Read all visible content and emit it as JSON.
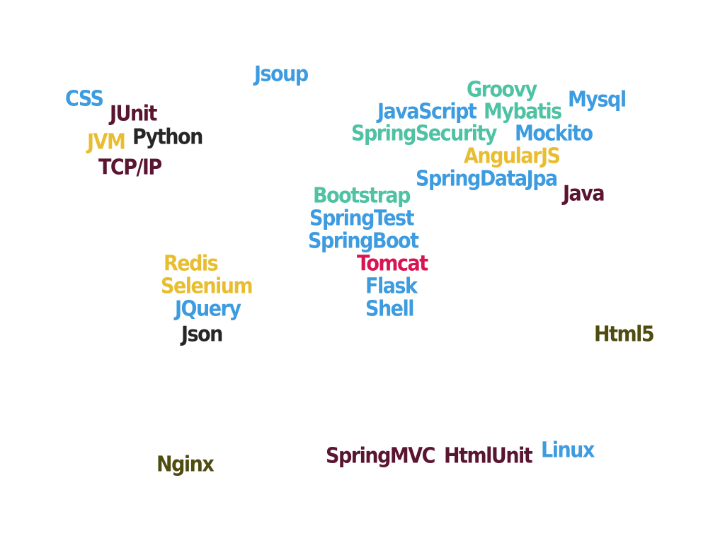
{
  "colors": {
    "blue": "#3d9be0",
    "teal": "#4ec2a3",
    "yellow": "#e8bd2f",
    "maroon": "#5a1530",
    "black": "#262626",
    "olive": "#4f4c10",
    "crimson": "#d81552"
  },
  "words": [
    {
      "text": "Jsoup",
      "color": "blue"
    },
    {
      "text": "CSS",
      "color": "blue"
    },
    {
      "text": "JUnit",
      "color": "maroon"
    },
    {
      "text": "JVM",
      "color": "yellow"
    },
    {
      "text": "Python",
      "color": "black"
    },
    {
      "text": "TCP/IP",
      "color": "maroon"
    },
    {
      "text": "Groovy",
      "color": "teal"
    },
    {
      "text": "Mysql",
      "color": "blue"
    },
    {
      "text": "JavaScript",
      "color": "blue"
    },
    {
      "text": "Mybatis",
      "color": "teal"
    },
    {
      "text": "SpringSecurity",
      "color": "teal"
    },
    {
      "text": "Mockito",
      "color": "blue"
    },
    {
      "text": "AngularJS",
      "color": "yellow"
    },
    {
      "text": "SpringDataJpa",
      "color": "blue"
    },
    {
      "text": "Java",
      "color": "maroon"
    },
    {
      "text": "Bootstrap",
      "color": "teal"
    },
    {
      "text": "SpringTest",
      "color": "blue"
    },
    {
      "text": "SpringBoot",
      "color": "blue"
    },
    {
      "text": "Tomcat",
      "color": "crimson"
    },
    {
      "text": "Flask",
      "color": "blue"
    },
    {
      "text": "Shell",
      "color": "blue"
    },
    {
      "text": "Redis",
      "color": "yellow"
    },
    {
      "text": "Selenium",
      "color": "yellow"
    },
    {
      "text": "JQuery",
      "color": "blue"
    },
    {
      "text": "Json",
      "color": "black"
    },
    {
      "text": "Html5",
      "color": "olive"
    },
    {
      "text": "Nginx",
      "color": "olive"
    },
    {
      "text": "SpringMVC",
      "color": "maroon"
    },
    {
      "text": "HtmlUnit",
      "color": "maroon"
    },
    {
      "text": "Linux",
      "color": "blue"
    }
  ]
}
